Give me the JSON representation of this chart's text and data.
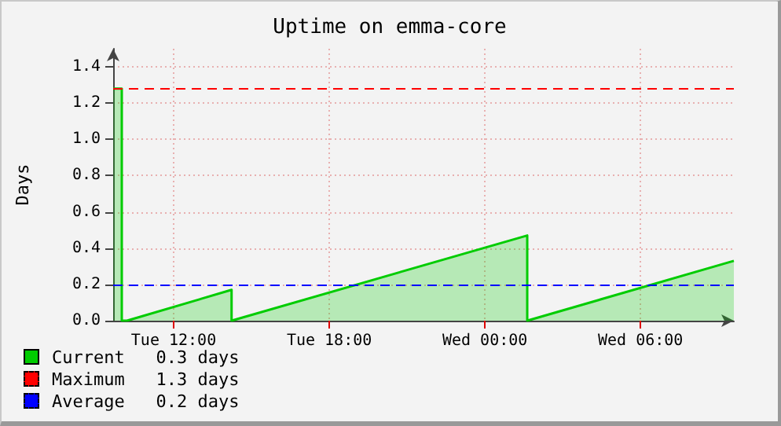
{
  "chart_data": {
    "type": "area",
    "title": "Uptime on emma-core",
    "ylabel": "Days",
    "series": [
      {
        "name": "Current   0.3 days",
        "color": "#00cc00",
        "x": [
          "--01-02T09:40",
          "--01-02T10:00",
          "--01-02T10:00",
          "--01-02T10:12",
          "--01-02T14:14",
          "--01-02T14:14",
          "--01-03T01:38",
          "--01-03T01:38",
          "--01-03T09:36"
        ],
        "values": [
          1.28,
          1.28,
          0,
          0,
          0.17,
          0,
          0.47,
          0,
          0.33
        ]
      }
    ],
    "ref_lines": [
      {
        "axis": "y",
        "value": 1.28,
        "label": "Maximum   1.3 days",
        "color": "#ff0000",
        "line_style": "dashed"
      },
      {
        "axis": "y",
        "value": 0.2,
        "label": "Average   0.2 days",
        "color": "#0000ff",
        "line_style": "dashed"
      }
    ],
    "xlim": [
      "--01-02T09:40",
      "--01-03T09:36"
    ],
    "xticks": [
      {
        "value": "--01-02T12:00",
        "label": "Tue 12:00"
      },
      {
        "value": "--01-02T18:00",
        "label": "Tue 18:00"
      },
      {
        "value": "--01-03T00:00",
        "label": "Wed 00:00"
      },
      {
        "value": "--01-03T06:00",
        "label": "Wed 06:00"
      }
    ],
    "ylim": [
      0,
      1.5
    ],
    "yticks": [
      {
        "value": 0,
        "label": "0.0"
      },
      0.2,
      0.4,
      0.6,
      0.8,
      {
        "value": 1,
        "label": "1.0"
      },
      1.2,
      1.4
    ],
    "grid": true,
    "legend": "bottom left",
    "marker": "none",
    "line_style": "solid"
  }
}
